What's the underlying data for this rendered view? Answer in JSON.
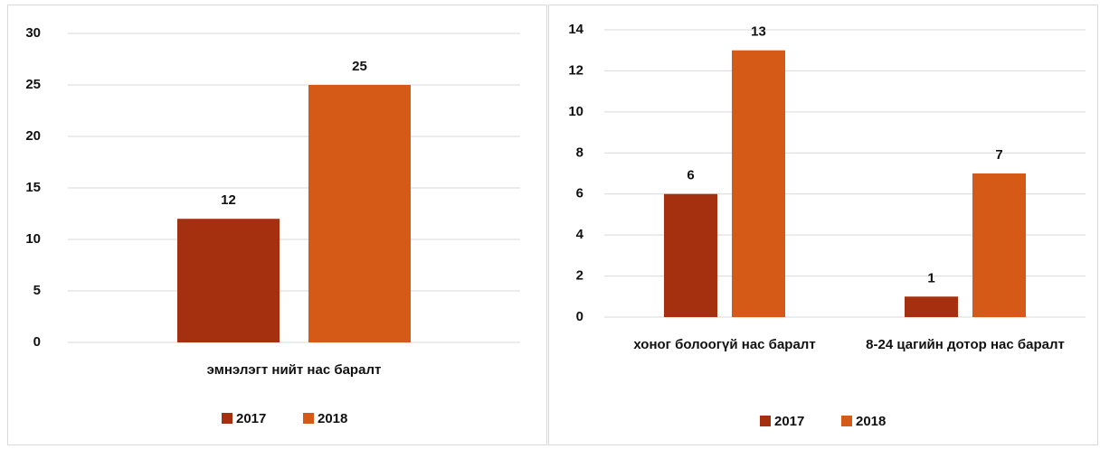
{
  "chart_data": [
    {
      "type": "bar",
      "categories": [
        "эмнэлэгт нийт нас баралт"
      ],
      "series": [
        {
          "name": "2017",
          "color": "#a5300f",
          "values": [
            12
          ]
        },
        {
          "name": "2018",
          "color": "#d55a17",
          "values": [
            25
          ]
        }
      ],
      "ylim": [
        0,
        30
      ],
      "yticks": [
        0,
        5,
        10,
        15,
        20,
        25,
        30
      ],
      "grid": true,
      "legend": "bottom"
    },
    {
      "type": "bar",
      "categories": [
        "хоног болоогүй  нас баралт",
        "8-24 цагийн дотор нас баралт"
      ],
      "series": [
        {
          "name": "2017",
          "color": "#a5300f",
          "values": [
            6,
            1
          ]
        },
        {
          "name": "2018",
          "color": "#d55a17",
          "values": [
            13,
            7
          ]
        }
      ],
      "ylim": [
        0,
        14
      ],
      "yticks": [
        0,
        2,
        4,
        6,
        8,
        10,
        12,
        14
      ],
      "grid": true,
      "legend": "bottom"
    }
  ]
}
